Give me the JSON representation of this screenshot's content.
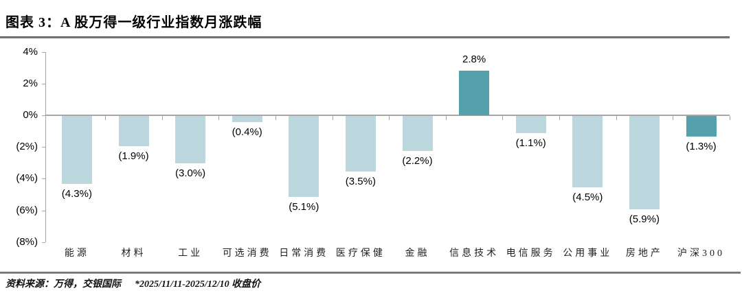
{
  "header": {
    "title": "图表 3：A 股万得一级行业指数月涨跌幅"
  },
  "footer": {
    "source": "资料来源：万得，交银国际",
    "note": "*2025/11/11-2025/12/10 收盘价"
  },
  "chart_data": {
    "type": "bar",
    "title": "A 股万得一级行业指数月涨跌幅",
    "xlabel": "",
    "ylabel": "",
    "ylim": [
      -8,
      4
    ],
    "grid": false,
    "legend": false,
    "categories": [
      "能源",
      "材料",
      "工业",
      "可选消费",
      "日常消费",
      "医疗保健",
      "金融",
      "信息技术",
      "电信服务",
      "公用事业",
      "房地产",
      "沪深300"
    ],
    "values": [
      -4.3,
      -1.9,
      -3.0,
      -0.4,
      -5.1,
      -3.5,
      -2.2,
      2.8,
      -1.1,
      -4.5,
      -5.9,
      -1.3
    ],
    "value_labels": [
      "(4.3%)",
      "(1.9%)",
      "(3.0%)",
      "(0.4%)",
      "(5.1%)",
      "(3.5%)",
      "(2.2%)",
      "2.8%",
      "(1.1%)",
      "(4.5%)",
      "(5.9%)",
      "(1.3%)"
    ],
    "emphasized": [
      false,
      false,
      false,
      false,
      false,
      false,
      false,
      true,
      false,
      false,
      false,
      true
    ],
    "y_ticks": [
      {
        "value": 4,
        "label": "4%"
      },
      {
        "value": 2,
        "label": "2%"
      },
      {
        "value": 0,
        "label": "0%"
      },
      {
        "value": -2,
        "label": "(2%)"
      },
      {
        "value": -4,
        "label": "(4%)"
      },
      {
        "value": -6,
        "label": "(6%)"
      },
      {
        "value": -8,
        "label": "(8%)"
      }
    ],
    "colors": {
      "bar": "#bcd8de",
      "bar_emphasis": "#54a0ac",
      "axis": "#a6a6a6",
      "text": "#000000"
    }
  }
}
